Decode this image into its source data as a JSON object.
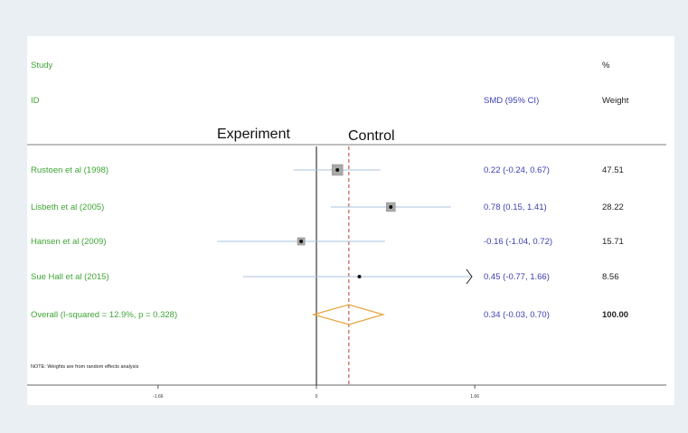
{
  "header": {
    "study_label": "Study",
    "id_label": "ID",
    "smd_header": "SMD (95% CI)",
    "pct_label": "%",
    "weight_label": "Weight",
    "experiment_label": "Experiment",
    "control_label": "Control"
  },
  "note": "NOTE: Weights are from random effects analysis",
  "colors": {
    "study_text": "#3fa535",
    "ci_text": "#3b3fb0",
    "ci_line": "#a9c3dd",
    "diamond": "#e8a33c",
    "overall_line": "#c0392b",
    "weight_box": "#a9a9a9"
  },
  "chart_data": {
    "type": "forest",
    "x_axis": {
      "ticks": [
        -1.66,
        0,
        1.66
      ],
      "tick_labels": [
        "-1.66",
        "0",
        "1.66"
      ],
      "range": [
        -1.9,
        3.6
      ]
    },
    "studies": [
      {
        "label": "Rustoen et al (1998)",
        "smd": 0.22,
        "lower": -0.24,
        "upper": 0.67,
        "ci_text": "0.22 (-0.24, 0.67)",
        "weight": 47.51,
        "weight_text": "47.51"
      },
      {
        "label": "Lisbeth et al (2005)",
        "smd": 0.78,
        "lower": 0.15,
        "upper": 1.41,
        "ci_text": "0.78 (0.15, 1.41)",
        "weight": 28.22,
        "weight_text": "28.22"
      },
      {
        "label": "Hansen et al (2009)",
        "smd": -0.16,
        "lower": -1.04,
        "upper": 0.72,
        "ci_text": "-0.16 (-1.04, 0.72)",
        "weight": 15.71,
        "weight_text": "15.71"
      },
      {
        "label": "Sue Hall et al (2015)",
        "smd": 0.45,
        "lower": -0.77,
        "upper": 1.66,
        "ci_text": "0.45 (-0.77, 1.66)",
        "weight": 8.56,
        "weight_text": "8.56",
        "upper_truncated": true
      }
    ],
    "overall": {
      "label": "Overall  (I-squared = 12.9%, p = 0.328)",
      "smd": 0.34,
      "lower": -0.03,
      "upper": 0.7,
      "ci_text": "0.34 (-0.03, 0.70)",
      "weight_text": "100.00"
    }
  }
}
